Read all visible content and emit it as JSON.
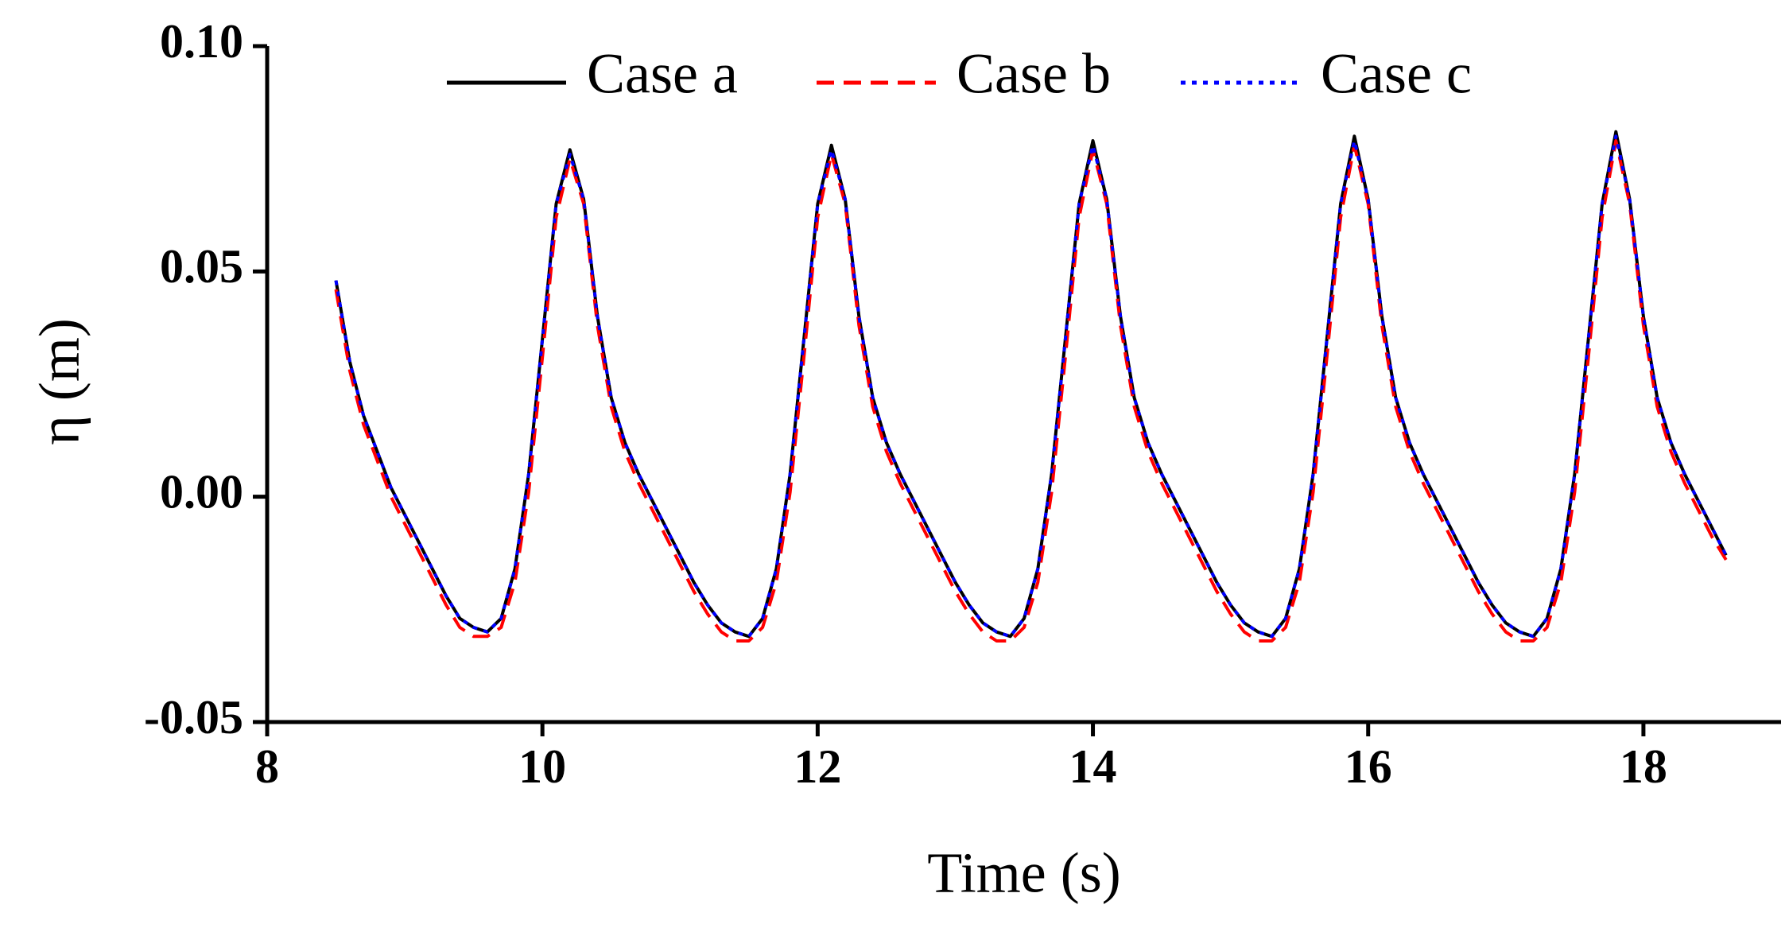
{
  "chart_data": {
    "type": "line",
    "xlabel": "Time (s)",
    "ylabel": "η (m)",
    "xlim": [
      8,
      19
    ],
    "xticks": [
      8,
      10,
      12,
      14,
      16,
      18
    ],
    "ylim": [
      -0.05,
      0.1
    ],
    "yticks": [
      {
        "value": -0.05,
        "label": "-0.05"
      },
      {
        "value": 0,
        "label": "0.00"
      },
      {
        "value": 0.05,
        "label": "0.05"
      },
      {
        "value": 0.1,
        "label": "0.10"
      }
    ],
    "legend": "top",
    "x": [
      8.5,
      8.6,
      8.7,
      8.8,
      8.9,
      9.0,
      9.1,
      9.2,
      9.3,
      9.4,
      9.5,
      9.6,
      9.7,
      9.8,
      9.9,
      10.0,
      10.1,
      10.2,
      10.3,
      10.4,
      10.5,
      10.6,
      10.7,
      10.8,
      10.9,
      11.0,
      11.1,
      11.2,
      11.3,
      11.4,
      11.5,
      11.6,
      11.7,
      11.8,
      11.9,
      12.0,
      12.1,
      12.2,
      12.3,
      12.4,
      12.5,
      12.6,
      12.7,
      12.8,
      12.9,
      13.0,
      13.1,
      13.2,
      13.3,
      13.4,
      13.5,
      13.6,
      13.7,
      13.8,
      13.9,
      14.0,
      14.1,
      14.2,
      14.3,
      14.4,
      14.5,
      14.6,
      14.7,
      14.8,
      14.9,
      15.0,
      15.1,
      15.2,
      15.3,
      15.4,
      15.5,
      15.6,
      15.7,
      15.8,
      15.9,
      16.0,
      16.1,
      16.2,
      16.3,
      16.4,
      16.5,
      16.6,
      16.7,
      16.8,
      16.9,
      17.0,
      17.1,
      17.2,
      17.3,
      17.4,
      17.5,
      17.6,
      17.7,
      17.8,
      17.9,
      18.0,
      18.1,
      18.2,
      18.3,
      18.4,
      18.5,
      18.6
    ],
    "series": [
      {
        "name": "Case a",
        "color": "#000000",
        "dash": "solid",
        "values": [
          0.048,
          0.03,
          0.018,
          0.01,
          0.002,
          -0.004,
          -0.01,
          -0.016,
          -0.022,
          -0.027,
          -0.029,
          -0.03,
          -0.027,
          -0.016,
          0.005,
          0.035,
          0.065,
          0.077,
          0.066,
          0.04,
          0.022,
          0.012,
          0.005,
          -0.001,
          -0.007,
          -0.013,
          -0.019,
          -0.024,
          -0.028,
          -0.03,
          -0.031,
          -0.027,
          -0.016,
          0.005,
          0.035,
          0.065,
          0.078,
          0.066,
          0.04,
          0.022,
          0.012,
          0.005,
          -0.001,
          -0.007,
          -0.013,
          -0.019,
          -0.024,
          -0.028,
          -0.03,
          -0.031,
          -0.027,
          -0.016,
          0.005,
          0.035,
          0.065,
          0.079,
          0.066,
          0.04,
          0.022,
          0.012,
          0.005,
          -0.001,
          -0.007,
          -0.013,
          -0.019,
          -0.024,
          -0.028,
          -0.03,
          -0.031,
          -0.027,
          -0.016,
          0.005,
          0.035,
          0.065,
          0.08,
          0.066,
          0.04,
          0.022,
          0.012,
          0.005,
          -0.001,
          -0.007,
          -0.013,
          -0.019,
          -0.024,
          -0.028,
          -0.03,
          -0.031,
          -0.027,
          -0.016,
          0.005,
          0.035,
          0.065,
          0.081,
          0.066,
          0.04,
          0.022,
          0.012,
          0.005,
          -0.001,
          -0.007,
          -0.013
        ]
      },
      {
        "name": "Case b",
        "color": "#ff0000",
        "dash": "dashed",
        "values": [
          0.046,
          0.028,
          0.016,
          0.008,
          0.0,
          -0.006,
          -0.012,
          -0.018,
          -0.024,
          -0.029,
          -0.031,
          -0.031,
          -0.029,
          -0.019,
          0.001,
          0.031,
          0.062,
          0.075,
          0.065,
          0.038,
          0.02,
          0.01,
          0.003,
          -0.003,
          -0.009,
          -0.015,
          -0.021,
          -0.026,
          -0.03,
          -0.032,
          -0.032,
          -0.029,
          -0.019,
          0.001,
          0.031,
          0.062,
          0.076,
          0.065,
          0.038,
          0.02,
          0.01,
          0.003,
          -0.003,
          -0.009,
          -0.015,
          -0.021,
          -0.026,
          -0.03,
          -0.032,
          -0.032,
          -0.029,
          -0.019,
          0.001,
          0.031,
          0.062,
          0.077,
          0.065,
          0.038,
          0.02,
          0.01,
          0.003,
          -0.003,
          -0.009,
          -0.015,
          -0.021,
          -0.026,
          -0.03,
          -0.032,
          -0.032,
          -0.029,
          -0.019,
          0.001,
          0.031,
          0.062,
          0.078,
          0.065,
          0.038,
          0.02,
          0.01,
          0.003,
          -0.003,
          -0.009,
          -0.015,
          -0.021,
          -0.026,
          -0.03,
          -0.032,
          -0.032,
          -0.029,
          -0.019,
          0.001,
          0.031,
          0.062,
          0.079,
          0.065,
          0.038,
          0.02,
          0.01,
          0.003,
          -0.003,
          -0.009,
          -0.014
        ]
      },
      {
        "name": "Case c",
        "color": "#0000ff",
        "dash": "dotted",
        "values": [
          0.048,
          0.03,
          0.018,
          0.01,
          0.002,
          -0.004,
          -0.01,
          -0.016,
          -0.022,
          -0.027,
          -0.029,
          -0.03,
          -0.027,
          -0.016,
          0.005,
          0.035,
          0.065,
          0.076,
          0.066,
          0.04,
          0.022,
          0.012,
          0.005,
          -0.001,
          -0.007,
          -0.013,
          -0.019,
          -0.024,
          -0.028,
          -0.03,
          -0.031,
          -0.027,
          -0.016,
          0.005,
          0.035,
          0.065,
          0.077,
          0.066,
          0.04,
          0.022,
          0.012,
          0.005,
          -0.001,
          -0.007,
          -0.013,
          -0.019,
          -0.024,
          -0.028,
          -0.03,
          -0.031,
          -0.027,
          -0.016,
          0.005,
          0.035,
          0.065,
          0.078,
          0.066,
          0.04,
          0.022,
          0.012,
          0.005,
          -0.001,
          -0.007,
          -0.013,
          -0.019,
          -0.024,
          -0.028,
          -0.03,
          -0.031,
          -0.027,
          -0.016,
          0.005,
          0.035,
          0.065,
          0.079,
          0.066,
          0.04,
          0.022,
          0.012,
          0.005,
          -0.001,
          -0.007,
          -0.013,
          -0.019,
          -0.024,
          -0.028,
          -0.03,
          -0.031,
          -0.027,
          -0.016,
          0.005,
          0.035,
          0.065,
          0.08,
          0.066,
          0.04,
          0.022,
          0.012,
          0.005,
          -0.001,
          -0.007,
          -0.013
        ]
      }
    ]
  }
}
